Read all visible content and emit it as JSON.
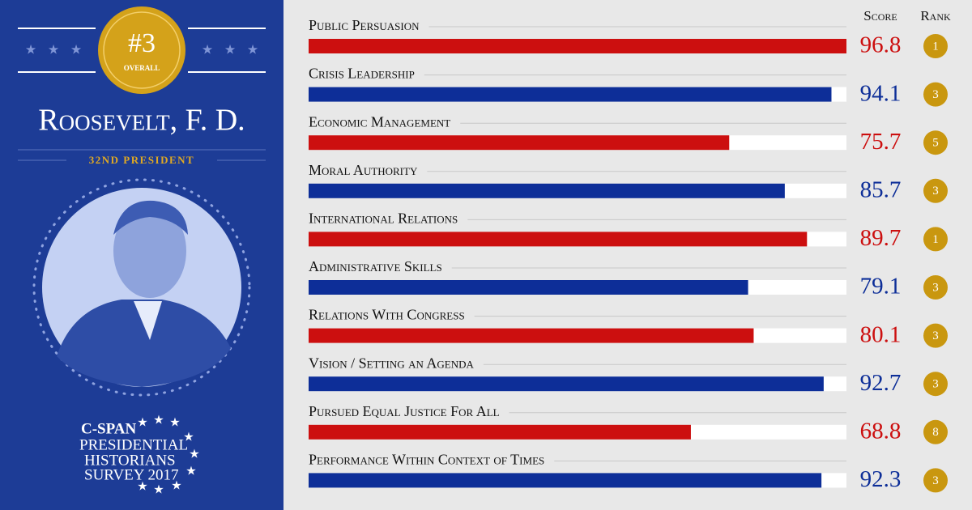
{
  "header": {
    "rank_badge": "#3",
    "rank_badge_sub": "OVERALL",
    "name": "Roosevelt, F. D.",
    "subtitle": "32nd President"
  },
  "logo": {
    "brand": "C-SPAN",
    "lines": [
      "Presidential",
      "Historians",
      "Survey 2017"
    ]
  },
  "chart_data": {
    "type": "bar",
    "orientation": "horizontal",
    "columns": {
      "score": "Score",
      "rank": "Rank"
    },
    "categories": [
      "Public Persuasion",
      "Crisis Leadership",
      "Economic Management",
      "Moral Authority",
      "International Relations",
      "Administrative Skills",
      "Relations With Congress",
      "Vision / Setting an Agenda",
      "Pursued Equal Justice For All",
      "Performance Within Context of Times"
    ],
    "values": [
      96.8,
      94.1,
      75.7,
      85.7,
      89.7,
      79.1,
      80.1,
      92.7,
      68.8,
      92.3
    ],
    "ranks": [
      1,
      3,
      5,
      3,
      1,
      3,
      3,
      3,
      8,
      3
    ],
    "colors": [
      "#cc0f0f",
      "#0d2e98"
    ]
  }
}
